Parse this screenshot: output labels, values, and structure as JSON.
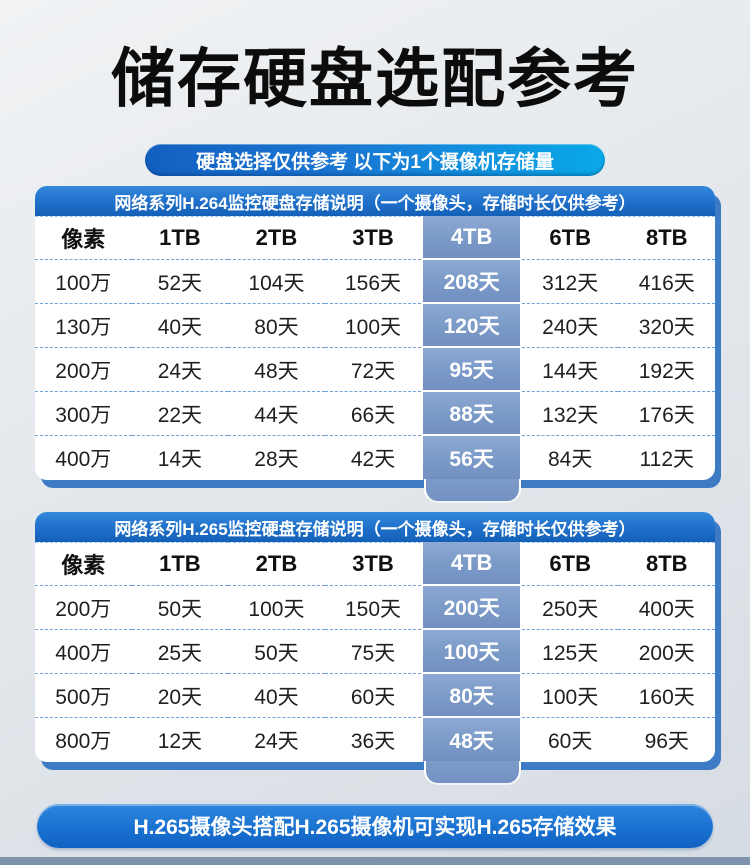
{
  "page": {
    "title": "储存硬盘选配参考",
    "subtitle": "硬盘选择仅供参考 以下为1个摄像机存储量",
    "footer_note": "H.265摄像头搭配H.265摄像机可实现H.265存储效果"
  },
  "colors": {
    "title_text": "#0c0c0c",
    "banner_gradient_left": "#1260c0",
    "banner_gradient_right": "#09a9e8",
    "table_header_blue": "#1e6fc8",
    "highlight_column_blue": "#7d9cc9",
    "card_edge_blue": "#3d7bc5",
    "dashed_divider": "#6fa3db",
    "bottom_bar": "#7e92ab",
    "cell_text": "#1f1f1f",
    "white_text": "#ffffff"
  },
  "chart_data": [
    {
      "type": "table",
      "title": "网络系列H.264监控硬盘存储说明（一个摄像头，存储时长仅供参考）",
      "columns": [
        "像素",
        "1TB",
        "2TB",
        "3TB",
        "4TB",
        "6TB",
        "8TB"
      ],
      "highlight_column": "4TB",
      "rows": [
        [
          "100万",
          "52天",
          "104天",
          "156天",
          "208天",
          "312天",
          "416天"
        ],
        [
          "130万",
          "40天",
          "80天",
          "100天",
          "120天",
          "240天",
          "320天"
        ],
        [
          "200万",
          "24天",
          "48天",
          "72天",
          "95天",
          "144天",
          "192天"
        ],
        [
          "300万",
          "22天",
          "44天",
          "66天",
          "88天",
          "132天",
          "176天"
        ],
        [
          "400万",
          "14天",
          "28天",
          "42天",
          "56天",
          "84天",
          "112天"
        ]
      ]
    },
    {
      "type": "table",
      "title": "网络系列H.265监控硬盘存储说明（一个摄像头，存储时长仅供参考）",
      "columns": [
        "像素",
        "1TB",
        "2TB",
        "3TB",
        "4TB",
        "6TB",
        "8TB"
      ],
      "highlight_column": "4TB",
      "rows": [
        [
          "200万",
          "50天",
          "100天",
          "150天",
          "200天",
          "250天",
          "400天"
        ],
        [
          "400万",
          "25天",
          "50天",
          "75天",
          "100天",
          "125天",
          "200天"
        ],
        [
          "500万",
          "20天",
          "40天",
          "60天",
          "80天",
          "100天",
          "160天"
        ],
        [
          "800万",
          "12天",
          "24天",
          "36天",
          "48天",
          "60天",
          "96天"
        ]
      ]
    }
  ]
}
